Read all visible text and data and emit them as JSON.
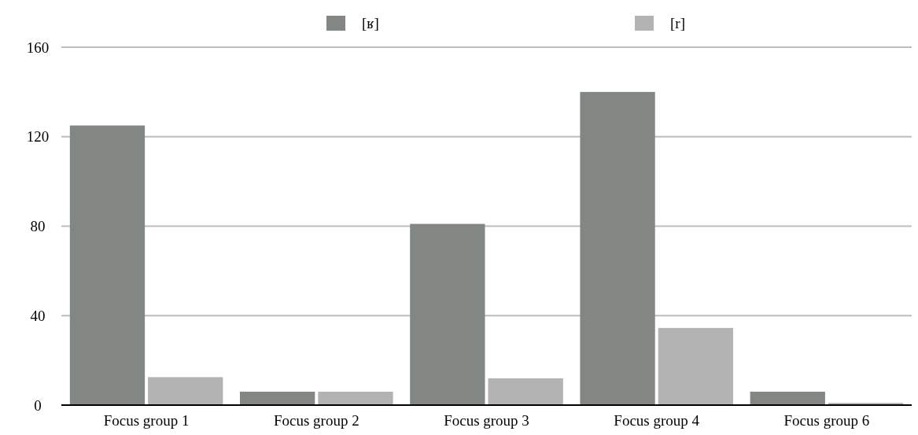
{
  "chart_data": {
    "type": "bar",
    "categories": [
      "Focus group 1",
      "Focus group 2",
      "Focus group 3",
      "Focus group 4",
      "Focus group 6"
    ],
    "series": [
      {
        "name": "[ʁ]",
        "color": "#828784",
        "values": [
          125,
          6,
          81,
          140,
          6
        ]
      },
      {
        "name": "[r]",
        "color": "#b3b3b3",
        "values": [
          12.5,
          6,
          12,
          34.5,
          1
        ]
      }
    ],
    "ylim": [
      0,
      160
    ],
    "yticks": [
      0,
      40,
      80,
      120,
      160
    ],
    "grid": "y",
    "legend": "top"
  }
}
